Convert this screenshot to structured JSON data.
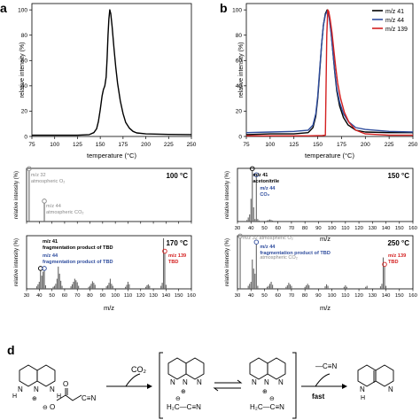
{
  "panel_letters": {
    "a": "a",
    "b": "b",
    "d": "d"
  },
  "chart_data": [
    {
      "id": "a",
      "type": "line",
      "xlabel": "temperature (°C)",
      "ylabel": "relative intensity (%)",
      "xlim": [
        75,
        250
      ],
      "ylim": [
        0,
        105
      ],
      "xticks": [
        75,
        100,
        125,
        150,
        175,
        200,
        225,
        250
      ],
      "yticks": [
        0,
        20,
        40,
        60,
        80,
        100
      ],
      "series": [
        {
          "color": "#000000",
          "points": [
            [
              75,
              1
            ],
            [
              100,
              1
            ],
            [
              125,
              1
            ],
            [
              138,
              1.5
            ],
            [
              143,
              3
            ],
            [
              146,
              6
            ],
            [
              148,
              12
            ],
            [
              150,
              21
            ],
            [
              152,
              32
            ],
            [
              153.5,
              37
            ],
            [
              155,
              40
            ],
            [
              156.5,
              47
            ],
            [
              157.5,
              62
            ],
            [
              158.5,
              80
            ],
            [
              159.5,
              93
            ],
            [
              160.5,
              100
            ],
            [
              161.5,
              97
            ],
            [
              163,
              87
            ],
            [
              165,
              70
            ],
            [
              167,
              55
            ],
            [
              169,
              42
            ],
            [
              172,
              28
            ],
            [
              175,
              18
            ],
            [
              178,
              11
            ],
            [
              182,
              6.5
            ],
            [
              186,
              4
            ],
            [
              190,
              2.8
            ],
            [
              200,
              2
            ],
            [
              225,
              1.6
            ],
            [
              250,
              1.5
            ]
          ]
        }
      ]
    },
    {
      "id": "b",
      "type": "line",
      "xlabel": "temperature (°C)",
      "ylabel": "relative intensity (%)",
      "xlim": [
        75,
        250
      ],
      "ylim": [
        0,
        105
      ],
      "xticks": [
        75,
        100,
        125,
        150,
        175,
        200,
        225,
        250
      ],
      "yticks": [
        0,
        20,
        40,
        60,
        80,
        100
      ],
      "legend_position": "top-right",
      "series": [
        {
          "name": "m/z 41",
          "color": "#000000",
          "points": [
            [
              75,
              1.5
            ],
            [
              100,
              2
            ],
            [
              125,
              2
            ],
            [
              140,
              3
            ],
            [
              145,
              7
            ],
            [
              148,
              16
            ],
            [
              150,
              30
            ],
            [
              152,
              50
            ],
            [
              154,
              72
            ],
            [
              156,
              88
            ],
            [
              158,
              97
            ],
            [
              160,
              100
            ],
            [
              162,
              95
            ],
            [
              164,
              83
            ],
            [
              166,
              66
            ],
            [
              168,
              50
            ],
            [
              170,
              36
            ],
            [
              173,
              24
            ],
            [
              177,
              15
            ],
            [
              182,
              9
            ],
            [
              190,
              5
            ],
            [
              200,
              3.5
            ],
            [
              225,
              3
            ],
            [
              250,
              3
            ]
          ]
        },
        {
          "name": "m/z 44",
          "color": "#2f4d9e",
          "points": [
            [
              75,
              3
            ],
            [
              100,
              3.5
            ],
            [
              125,
              4
            ],
            [
              140,
              5
            ],
            [
              145,
              9
            ],
            [
              148,
              18
            ],
            [
              150,
              32
            ],
            [
              152,
              52
            ],
            [
              154,
              72
            ],
            [
              156,
              88
            ],
            [
              158,
              96
            ],
            [
              160,
              99
            ],
            [
              162,
              94
            ],
            [
              164,
              82
            ],
            [
              166,
              66
            ],
            [
              168,
              51
            ],
            [
              170,
              38
            ],
            [
              173,
              27
            ],
            [
              177,
              18
            ],
            [
              182,
              12
            ],
            [
              190,
              7
            ],
            [
              200,
              5.5
            ],
            [
              225,
              4
            ],
            [
              250,
              3.5
            ]
          ]
        },
        {
          "name": "m/z 139",
          "color": "#d42020",
          "points": [
            [
              75,
              0.5
            ],
            [
              140,
              0.5
            ],
            [
              155,
              0.8
            ],
            [
              158,
              1
            ],
            [
              158.8,
              40
            ],
            [
              159.5,
              80
            ],
            [
              160.5,
              100
            ],
            [
              161.5,
              99
            ],
            [
              163,
              93
            ],
            [
              165,
              82
            ],
            [
              167,
              68
            ],
            [
              169,
              54
            ],
            [
              171,
              42
            ],
            [
              174,
              30
            ],
            [
              178,
              19
            ],
            [
              183,
              11
            ],
            [
              190,
              5
            ],
            [
              200,
              2
            ],
            [
              225,
              1
            ],
            [
              250,
              1
            ]
          ]
        }
      ]
    },
    {
      "id": "c1",
      "type": "bar",
      "xlabel": "",
      "ylabel": "relative intensity (%)",
      "xlim": [
        30,
        160
      ],
      "ylim": [
        0,
        105
      ],
      "temperature": "100 °C",
      "annotations": [
        {
          "text": "m/z 32",
          "text2": "atmospheric O₂",
          "mz": 32,
          "color": "#888888"
        },
        {
          "text": "m/z 44",
          "text2": "atmospheric CO₂",
          "mz": 44,
          "color": "#888888"
        }
      ],
      "peaks": [
        [
          32,
          100
        ],
        [
          44,
          36
        ]
      ]
    },
    {
      "id": "c2",
      "type": "bar",
      "xlabel": "m/z",
      "ylabel": "relative intensity (%)",
      "xlim": [
        30,
        160
      ],
      "ylim": [
        0,
        105
      ],
      "xticks": [
        30,
        40,
        50,
        60,
        70,
        80,
        90,
        100,
        110,
        120,
        130,
        140,
        150,
        160
      ],
      "temperature": "150 °C",
      "annotations": [
        {
          "text": "m/z 41",
          "text2": "acetonitrile",
          "mz": 41,
          "color": "#000000"
        },
        {
          "text": "m/z 44",
          "text2": "CO₂",
          "mz": 44,
          "color": "#2f4d9e"
        }
      ],
      "peaks": [
        [
          37,
          3
        ],
        [
          38,
          8
        ],
        [
          39,
          14
        ],
        [
          40,
          45
        ],
        [
          41,
          100
        ],
        [
          42,
          28
        ],
        [
          43,
          5
        ],
        [
          44,
          88
        ],
        [
          45,
          5
        ],
        [
          46,
          2
        ],
        [
          52,
          2
        ],
        [
          53,
          3
        ],
        [
          54,
          4
        ],
        [
          55,
          3
        ],
        [
          56,
          2
        ]
      ]
    },
    {
      "id": "c3",
      "type": "bar",
      "xlabel": "m/z",
      "ylabel": "relative intensity (%)",
      "xlim": [
        30,
        160
      ],
      "ylim": [
        0,
        105
      ],
      "xticks": [
        30,
        40,
        50,
        60,
        70,
        80,
        90,
        100,
        110,
        120,
        130,
        140,
        150,
        160
      ],
      "temperature": "170 °C",
      "annotations": [
        {
          "text": "m/z 41",
          "text2": "fragmentation product of TBD",
          "mz": 41,
          "color": "#000000"
        },
        {
          "text": "m/z 44",
          "text2": "fragmentation product of TBD",
          "mz": 44,
          "color": "#2f4d9e"
        },
        {
          "text": "m/z 139",
          "text2": "TBD",
          "mz": 139,
          "color": "#d42020"
        }
      ],
      "peaks": [
        [
          38,
          5
        ],
        [
          39,
          9
        ],
        [
          40,
          14
        ],
        [
          41,
          36
        ],
        [
          42,
          26
        ],
        [
          43,
          34
        ],
        [
          44,
          36
        ],
        [
          45,
          7
        ],
        [
          51,
          4
        ],
        [
          52,
          6
        ],
        [
          53,
          10
        ],
        [
          54,
          20
        ],
        [
          55,
          44
        ],
        [
          56,
          30
        ],
        [
          57,
          16
        ],
        [
          58,
          6
        ],
        [
          65,
          5
        ],
        [
          66,
          9
        ],
        [
          67,
          14
        ],
        [
          68,
          20
        ],
        [
          69,
          17
        ],
        [
          70,
          13
        ],
        [
          71,
          6
        ],
        [
          79,
          4
        ],
        [
          80,
          6
        ],
        [
          81,
          10
        ],
        [
          82,
          15
        ],
        [
          83,
          12
        ],
        [
          84,
          8
        ],
        [
          93,
          5
        ],
        [
          94,
          7
        ],
        [
          95,
          12
        ],
        [
          96,
          20
        ],
        [
          97,
          10
        ],
        [
          98,
          6
        ],
        [
          108,
          4
        ],
        [
          109,
          8
        ],
        [
          110,
          14
        ],
        [
          111,
          9
        ],
        [
          124,
          4
        ],
        [
          125,
          7
        ],
        [
          126,
          9
        ],
        [
          127,
          6
        ],
        [
          136,
          6
        ],
        [
          137,
          12
        ],
        [
          138,
          100
        ],
        [
          139,
          70
        ],
        [
          140,
          8
        ]
      ]
    },
    {
      "id": "c4",
      "type": "bar",
      "xlabel": "m/z",
      "ylabel": "relative intensity (%)",
      "xlim": [
        30,
        160
      ],
      "ylim": [
        0,
        105
      ],
      "xticks": [
        30,
        40,
        50,
        60,
        70,
        80,
        90,
        100,
        110,
        120,
        130,
        140,
        150,
        160
      ],
      "temperature": "250 °C",
      "annotations": [
        {
          "text": "m/z 32 atmospheric O₂",
          "text2": "",
          "mz": 32,
          "color": "#888888"
        },
        {
          "text": "m/z 44",
          "text2": "fragmentation product of TBD",
          "mz": 44,
          "color": "#2f4d9e"
        },
        {
          "text": "",
          "text2": "atmospheric CO₂",
          "mz": 44,
          "color": "#888888"
        },
        {
          "text": "m/z 139",
          "text2": "TBD",
          "mz": 139,
          "color": "#d42020"
        }
      ],
      "peaks": [
        [
          32,
          100
        ],
        [
          38,
          6
        ],
        [
          39,
          10
        ],
        [
          40,
          14
        ],
        [
          41,
          58
        ],
        [
          42,
          40
        ],
        [
          43,
          30
        ],
        [
          44,
          88
        ],
        [
          45,
          6
        ],
        [
          52,
          4
        ],
        [
          53,
          6
        ],
        [
          54,
          10
        ],
        [
          55,
          14
        ],
        [
          56,
          8
        ],
        [
          66,
          4
        ],
        [
          67,
          7
        ],
        [
          68,
          12
        ],
        [
          69,
          9
        ],
        [
          70,
          6
        ],
        [
          80,
          4
        ],
        [
          81,
          7
        ],
        [
          82,
          10
        ],
        [
          83,
          7
        ],
        [
          95,
          5
        ],
        [
          96,
          9
        ],
        [
          97,
          6
        ],
        [
          109,
          4
        ],
        [
          110,
          7
        ],
        [
          111,
          4
        ],
        [
          125,
          4
        ],
        [
          126,
          6
        ],
        [
          136,
          5
        ],
        [
          137,
          10
        ],
        [
          138,
          62
        ],
        [
          139,
          44
        ],
        [
          140,
          6
        ]
      ]
    }
  ],
  "scheme": {
    "co2_label": "CO₂",
    "cn_label": "—C≡N",
    "fast_label": "fast",
    "nh_label": "H",
    "n_label": "N",
    "nplus_label": "N",
    "plus_sign": "⊕",
    "minus_sign": "⊖",
    "carbanion_label": "H₂C—C≡N",
    "acetate_o_label": "O",
    "acetate_cn_label": "C≡N",
    "reaction_arrow_color": "#000000"
  }
}
